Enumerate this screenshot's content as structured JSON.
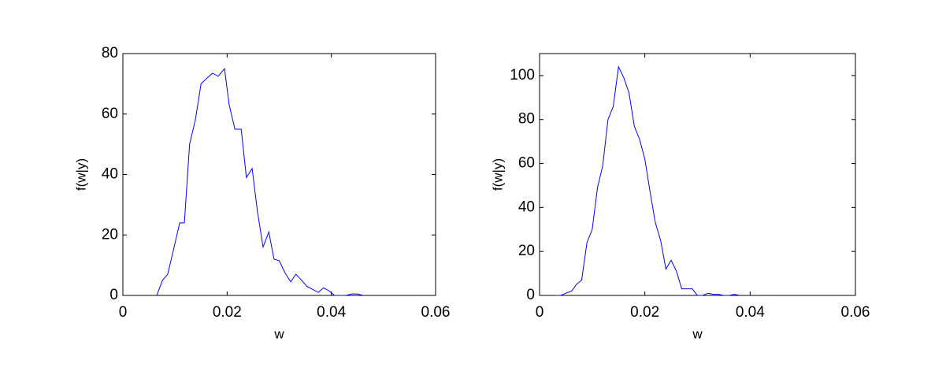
{
  "chart_data": [
    {
      "type": "line",
      "xlabel": "w",
      "ylabel": "f(w|y)",
      "color": "#0000ff",
      "xlim": [
        0,
        0.06
      ],
      "xticks": [
        0,
        0.02,
        0.04,
        0.06
      ],
      "ylim": [
        0,
        80
      ],
      "yticks": [
        0,
        20,
        40,
        60,
        80
      ],
      "x": [
        0.0065,
        0.0076,
        0.0086,
        0.0097,
        0.0109,
        0.0118,
        0.0128,
        0.0139,
        0.015,
        0.0162,
        0.0172,
        0.0183,
        0.0195,
        0.0204,
        0.0215,
        0.0227,
        0.0237,
        0.0248,
        0.0258,
        0.0269,
        0.028,
        0.029,
        0.03,
        0.0311,
        0.0322,
        0.0332,
        0.0343,
        0.0353,
        0.0364,
        0.0375,
        0.0385,
        0.0396,
        0.0406,
        0.0417,
        0.0428,
        0.0439,
        0.045,
        0.0461
      ],
      "values": [
        0,
        5,
        7,
        15,
        24,
        24,
        50,
        58,
        70,
        72,
        73.5,
        72.5,
        75,
        63,
        55,
        55,
        39,
        42,
        28,
        16,
        21,
        12,
        11.5,
        7.5,
        4.5,
        7,
        5,
        3,
        2,
        1,
        2.5,
        1.5,
        0,
        0,
        0,
        0.5,
        0.5,
        0
      ]
    },
    {
      "type": "line",
      "xlabel": "w",
      "ylabel": "f(w|y)",
      "color": "#0000ff",
      "xlim": [
        0,
        0.06
      ],
      "xticks": [
        0,
        0.02,
        0.04,
        0.06
      ],
      "ylim": [
        0,
        110
      ],
      "yticks": [
        0,
        20,
        40,
        60,
        80,
        100
      ],
      "x": [
        0.003,
        0.004,
        0.005,
        0.0061,
        0.007,
        0.008,
        0.009,
        0.01,
        0.011,
        0.012,
        0.013,
        0.014,
        0.015,
        0.016,
        0.017,
        0.018,
        0.019,
        0.02,
        0.021,
        0.022,
        0.023,
        0.024,
        0.025,
        0.026,
        0.027,
        0.028,
        0.029,
        0.03,
        0.031,
        0.032,
        0.033,
        0.034,
        0.035,
        0.036,
        0.037,
        0.038
      ],
      "values": [
        0,
        0,
        1,
        2,
        5,
        7,
        24,
        30,
        49,
        59,
        80,
        86,
        104,
        99,
        92,
        77,
        71,
        62,
        47,
        33,
        25,
        12,
        16,
        11,
        3,
        3,
        3,
        0,
        0,
        1,
        0.5,
        0.5,
        0,
        0,
        0.5,
        0
      ]
    }
  ]
}
